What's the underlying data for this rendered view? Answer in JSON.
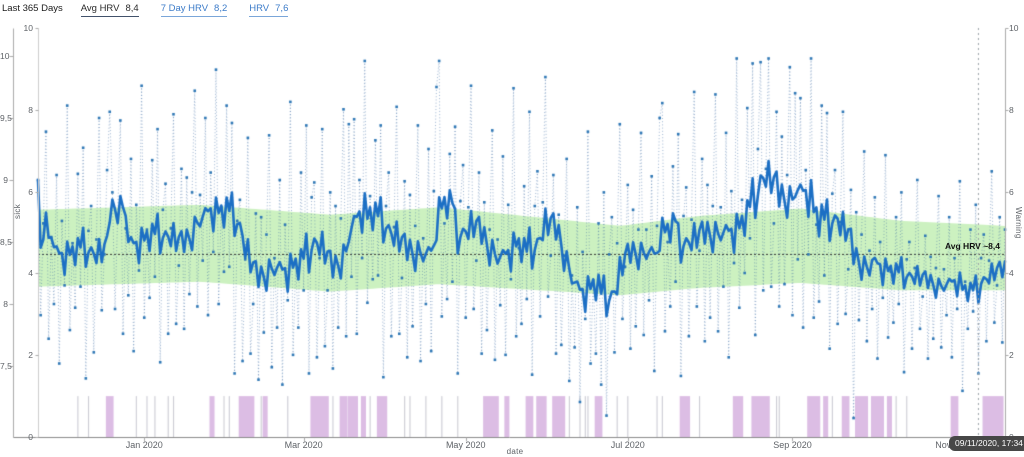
{
  "header": {
    "range_label": "Last 365 Days",
    "tabs": [
      {
        "label": "Avg HRV",
        "value": "8,4",
        "selected": true
      },
      {
        "label": "7 Day HRV",
        "value": "8,2",
        "selected": false
      },
      {
        "label": "HRV",
        "value": "7,6",
        "selected": false
      }
    ]
  },
  "annotation": {
    "avg_line_label": "Avg HRV ~8,4"
  },
  "tooltip": {
    "text": "09/11/2020, 17:34"
  },
  "colors": {
    "daily_point": "#2e77b5",
    "daily_connector": "rgba(52,100,160,0.55)",
    "seven_day_line": "#1c6fc4",
    "normal_band": "rgba(198,240,185,0.9)",
    "event_bar": "rgba(214,178,223,0.85)",
    "event_marker_thin": "rgba(195,195,205,0.85)",
    "avg_line": "#333333",
    "crosshair": "#9aa0a6",
    "axis_line": "#aaaaaa",
    "tick_text": "#5f6368",
    "link_blue": "#3d7cc9",
    "tooltip_bg": "#474747"
  },
  "chart_data": {
    "type": "line",
    "title": "",
    "subtitle": "",
    "legend": "none",
    "grid": "off",
    "days_total": 365,
    "x_axis": {
      "label": "date",
      "tick_labels": [
        "Jan 2020",
        "Mar 2020",
        "May 2020",
        "Jul 2020",
        "Sep 2020",
        "Nov 2020"
      ],
      "tick_days": [
        40,
        100,
        161,
        222,
        284,
        345
      ]
    },
    "y_axis_hrv": {
      "label": "",
      "tick_labels": [
        "10",
        "9,5",
        "9",
        "8,5",
        "8",
        "7,5"
      ],
      "tick_values": [
        10,
        9.5,
        9,
        8.5,
        8,
        7.5
      ],
      "range_shown": [
        7.5,
        10
      ]
    },
    "y_axis_sick": {
      "label": "sick",
      "tick_labels": [
        "10",
        "8",
        "6",
        "4",
        "2",
        "0"
      ],
      "tick_values": [
        10,
        8,
        6,
        4,
        2,
        0
      ],
      "range": [
        0,
        10
      ]
    },
    "y_axis_warning": {
      "label": "Warning",
      "tick_labels": [
        "10",
        "8",
        "6",
        "4",
        "2",
        "0"
      ],
      "tick_values": [
        10,
        8,
        6,
        4,
        2,
        0
      ],
      "range": [
        0,
        10
      ]
    },
    "avg_hrv": 8.4,
    "avg_line_value": 8.4,
    "crosshair_day": 354,
    "series": {
      "seven_day_avg_line_points": [
        [
          0,
          8.45
        ],
        [
          8,
          8.35
        ],
        [
          16,
          8.45
        ],
        [
          21,
          8.3
        ],
        [
          25,
          8.55
        ],
        [
          33,
          8.45
        ],
        [
          38,
          8.5
        ],
        [
          46,
          8.55
        ],
        [
          52,
          8.4
        ],
        [
          55,
          8.6
        ],
        [
          61,
          8.72
        ],
        [
          64,
          8.8
        ],
        [
          67,
          8.6
        ],
        [
          70,
          8.75
        ],
        [
          74,
          8.5
        ],
        [
          78,
          8.2
        ],
        [
          82,
          8.15
        ],
        [
          85,
          8.35
        ],
        [
          89,
          8.2
        ],
        [
          93,
          8.3
        ],
        [
          97,
          8.25
        ],
        [
          100,
          8.45
        ],
        [
          103,
          8.6
        ],
        [
          106,
          8.2
        ],
        [
          110,
          8.3
        ],
        [
          116,
          8.5
        ],
        [
          119,
          8.72
        ],
        [
          123,
          8.6
        ],
        [
          125,
          8.78
        ],
        [
          129,
          8.5
        ],
        [
          132,
          8.55
        ],
        [
          136,
          8.35
        ],
        [
          140,
          8.45
        ],
        [
          144,
          8.3
        ],
        [
          148,
          8.55
        ],
        [
          151,
          8.6
        ],
        [
          157,
          8.5
        ],
        [
          161,
          8.65
        ],
        [
          164,
          8.55
        ],
        [
          168,
          8.4
        ],
        [
          172,
          8.3
        ],
        [
          176,
          8.5
        ],
        [
          180,
          8.4
        ],
        [
          183,
          8.3
        ],
        [
          187,
          8.55
        ],
        [
          191,
          8.7
        ],
        [
          195,
          8.4
        ],
        [
          198,
          8.15
        ],
        [
          202,
          8.05
        ],
        [
          208,
          8.15
        ],
        [
          212,
          7.98
        ],
        [
          217,
          8.3
        ],
        [
          221,
          8.45
        ],
        [
          225,
          8.35
        ],
        [
          229,
          8.45
        ],
        [
          232,
          8.3
        ],
        [
          236,
          8.4
        ],
        [
          240,
          8.5
        ],
        [
          244,
          8.45
        ],
        [
          249,
          8.6
        ],
        [
          253,
          8.5
        ],
        [
          257,
          8.6
        ],
        [
          261,
          8.55
        ],
        [
          264,
          8.7
        ],
        [
          268,
          8.9
        ],
        [
          272,
          9.0
        ],
        [
          276,
          8.8
        ],
        [
          279,
          8.93
        ],
        [
          283,
          8.7
        ],
        [
          287,
          8.85
        ],
        [
          291,
          8.6
        ],
        [
          295,
          8.5
        ],
        [
          298,
          8.7
        ],
        [
          302,
          8.5
        ],
        [
          306,
          8.4
        ],
        [
          310,
          8.35
        ],
        [
          313,
          8.3
        ],
        [
          317,
          8.25
        ],
        [
          321,
          8.2
        ],
        [
          325,
          8.25
        ],
        [
          328,
          8.15
        ],
        [
          332,
          8.2
        ],
        [
          336,
          8.1
        ],
        [
          340,
          8.15
        ],
        [
          343,
          8.2
        ],
        [
          347,
          8.1
        ],
        [
          351,
          8.15
        ],
        [
          355,
          8.2
        ],
        [
          359,
          8.25
        ],
        [
          364,
          8.3
        ]
      ],
      "daily_hrv_noise_pattern": [
        0.5,
        -0.7,
        0.3,
        1.3,
        -0.9,
        0.2,
        -0.5,
        0.9,
        -1.1,
        0.4,
        -0.3,
        1.6,
        -0.8,
        0.1,
        -0.6,
        0.8,
        -0.4,
        1.1,
        -1.3,
        0.3,
        0.6,
        -0.9,
        0.2,
        1.4,
        -0.7,
        -0.2,
        0.7,
        -1.0
      ],
      "daily_hrv_noise_amplitude_points": [
        [
          0,
          0.75
        ],
        [
          60,
          0.8
        ],
        [
          100,
          0.85
        ],
        [
          150,
          0.85
        ],
        [
          200,
          0.8
        ],
        [
          230,
          0.75
        ],
        [
          260,
          0.9
        ],
        [
          280,
          0.95
        ],
        [
          300,
          0.8
        ],
        [
          320,
          0.6
        ],
        [
          345,
          0.55
        ],
        [
          364,
          0.6
        ]
      ],
      "daily_hrv_overrides": {
        "0": 9.0,
        "27": 9.55,
        "71": 9.6,
        "117": 9.45,
        "150": 9.75,
        "185": 9.55,
        "212": 7.35,
        "234": 9.5,
        "272": 9.95,
        "285": 9.7,
        "295": 9.6,
        "307": 7.05,
        "348": 7.3
      },
      "daily_hrv_clamp": [
        7.08,
        9.98
      ],
      "normal_range_band_points": [
        [
          0,
          8.76,
          8.14
        ],
        [
          61,
          8.8,
          8.18
        ],
        [
          110,
          8.72,
          8.1
        ],
        [
          151,
          8.78,
          8.16
        ],
        [
          197,
          8.68,
          8.1
        ],
        [
          219,
          8.63,
          8.07
        ],
        [
          249,
          8.71,
          8.13
        ],
        [
          287,
          8.77,
          8.17
        ],
        [
          325,
          8.67,
          8.11
        ],
        [
          364,
          8.63,
          8.11
        ]
      ],
      "event_bars": {
        "value": 1,
        "day_ranges": [
          [
            26,
            28
          ],
          [
            65,
            66
          ],
          [
            76,
            81
          ],
          [
            85,
            86
          ],
          [
            103,
            109
          ],
          [
            114,
            116
          ],
          [
            117,
            120
          ],
          [
            122,
            123
          ],
          [
            128,
            131
          ],
          [
            168,
            173
          ],
          [
            176,
            177
          ],
          [
            184,
            186
          ],
          [
            188,
            191
          ],
          [
            194,
            198
          ],
          [
            210,
            212
          ],
          [
            242,
            245
          ],
          [
            262,
            265
          ],
          [
            269,
            275
          ],
          [
            290,
            294
          ],
          [
            296,
            297
          ],
          [
            303,
            305
          ],
          [
            308,
            312
          ],
          [
            314,
            318
          ],
          [
            320,
            321
          ],
          [
            344,
            346
          ],
          [
            356,
            363
          ]
        ]
      },
      "event_markers_single_day": [
        15,
        19,
        37,
        41,
        44,
        49,
        51,
        70,
        72,
        84,
        94,
        111,
        125,
        138,
        140,
        146,
        152,
        158,
        200,
        204,
        206,
        207,
        218,
        222,
        233,
        235,
        249,
        278,
        279,
        299,
        323,
        327
      ]
    }
  }
}
